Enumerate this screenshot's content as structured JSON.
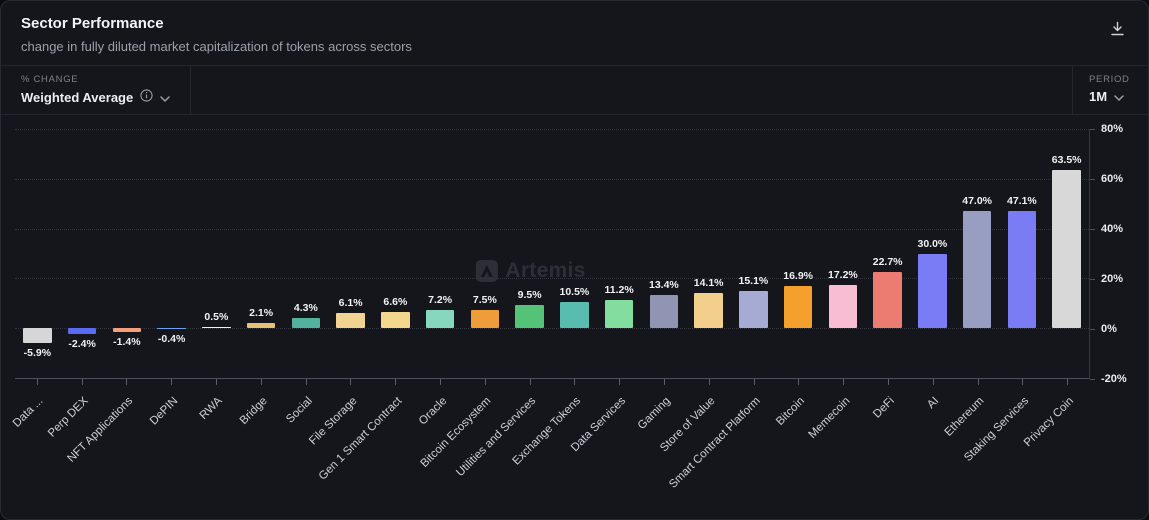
{
  "header": {
    "title": "Sector Performance",
    "subtitle": "change in fully diluted market capitalization of tokens across sectors"
  },
  "controls": {
    "change_label": "% CHANGE",
    "change_value": "Weighted Average",
    "period_label": "PERIOD",
    "period_value": "1M"
  },
  "watermark": "Artemis",
  "chart_data": {
    "type": "bar",
    "title": "Sector Performance",
    "ylabel": "% change",
    "ylim": [
      -20,
      80
    ],
    "yticks": [
      80,
      60,
      40,
      20,
      0,
      -20
    ],
    "ytick_suffix": "%",
    "value_suffix": "%",
    "grid": true,
    "legend_position": "none",
    "categories": [
      "Data ...",
      "Perp DEX",
      "NFT Applications",
      "DePIN",
      "RWA",
      "Bridge",
      "Social",
      "File Storage",
      "Gen 1 Smart Contract",
      "Oracle",
      "Bitcoin Ecosystem",
      "Utilities and Services",
      "Exchange Tokens",
      "Data Services",
      "Gaming",
      "Store of Value",
      "Smart Contract Platform",
      "Bitcoin",
      "Memecoin",
      "DeFi",
      "AI",
      "Ethereum",
      "Staking Services",
      "Privacy Coin"
    ],
    "values": [
      -5.9,
      -2.4,
      -1.4,
      -0.4,
      0.5,
      2.1,
      4.3,
      6.1,
      6.6,
      7.2,
      7.5,
      9.5,
      10.5,
      11.2,
      13.4,
      14.1,
      15.1,
      16.9,
      17.2,
      22.7,
      30.0,
      47.0,
      47.1,
      63.5
    ],
    "colors": [
      "#d6d6d8",
      "#5b6bf0",
      "#f2a07a",
      "#6d9ff5",
      "#f3f1ec",
      "#e6c374",
      "#53b29e",
      "#f2d492",
      "#f4d78c",
      "#86d7bd",
      "#ef9d3a",
      "#55c377",
      "#58bcae",
      "#83dd9e",
      "#8f95b2",
      "#f3cf8c",
      "#a6abd6",
      "#f5a02c",
      "#f8bdd2",
      "#ee7b72",
      "#7a7cf5",
      "#989dc2",
      "#7a7cf5",
      "#d8d8d9"
    ]
  }
}
